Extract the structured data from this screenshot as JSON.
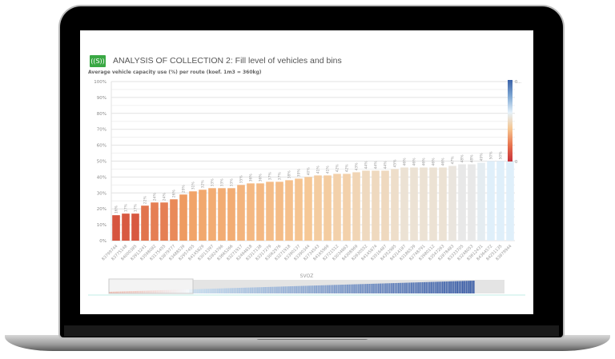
{
  "app": {
    "logo_text": "((S))",
    "title": "ANALYSIS OF COLLECTION 2: Fill level of vehicles and bins",
    "accent": "#3aa844"
  },
  "chart_data": {
    "type": "bar",
    "title": "Average vehicle capacity use (%) per route (koef. 1m3 = 360kg)",
    "xlabel": "",
    "ylabel": "",
    "ylim": [
      0,
      100
    ],
    "yticks": [
      "0%",
      "10%",
      "20%",
      "30%",
      "40%",
      "50%",
      "60%",
      "70%",
      "80%",
      "90%",
      "100%"
    ],
    "grid": true,
    "categories": [
      "83799744",
      "83775148",
      "84000385",
      "83913241",
      "83598082",
      "83175455",
      "83879777",
      "83488539",
      "82957455",
      "84145829",
      "83013397",
      "82824766",
      "83665266",
      "83271917",
      "82494818",
      "83317138",
      "83317279",
      "83062976",
      "83271918",
      "83390137",
      "83390344",
      "82734543",
      "84165969",
      "82721512",
      "83034863",
      "84308969",
      "82630552",
      "84145874",
      "83516487",
      "84352985",
      "84314187",
      "83186539",
      "82748791",
      "83980112",
      "83547263",
      "82878483",
      "83333705",
      "83248053",
      "83612431",
      "84364572",
      "84251135",
      "83879944"
    ],
    "values": [
      16,
      17,
      17,
      22,
      24,
      24,
      26,
      29,
      31,
      32,
      33,
      33,
      33,
      35,
      36,
      36,
      37,
      37,
      38,
      39,
      40,
      41,
      41,
      42,
      42,
      43,
      44,
      44,
      44,
      45,
      46,
      46,
      46,
      46,
      46,
      47,
      48,
      48,
      49,
      50,
      50,
      50
    ],
    "data_labels": [
      "16%",
      "17%",
      "17%",
      "22%",
      "24%",
      "24%",
      "26%",
      "29%",
      "31%",
      "32%",
      "33%",
      "33%",
      "33%",
      "35%",
      "36%",
      "36%",
      "37%",
      "37%",
      "38%",
      "39%",
      "40%",
      "41%",
      "41%",
      "42%",
      "42%",
      "43%",
      "44%",
      "44%",
      "44%",
      "45%",
      "46%",
      "46%",
      "46%",
      "46%",
      "46%",
      "47%",
      "48%",
      "48%",
      "49%",
      "50%",
      "50%",
      "50%"
    ],
    "color_legend": {
      "top_label": "0...",
      "bottom_label": "0",
      "colors": [
        "#3b62a8",
        "#7fa8d4",
        "#e4f1fa",
        "#f6c590",
        "#e8734e",
        "#c8303a"
      ],
      "placement": "right"
    },
    "navigator": {
      "label": "SVOZ"
    }
  }
}
